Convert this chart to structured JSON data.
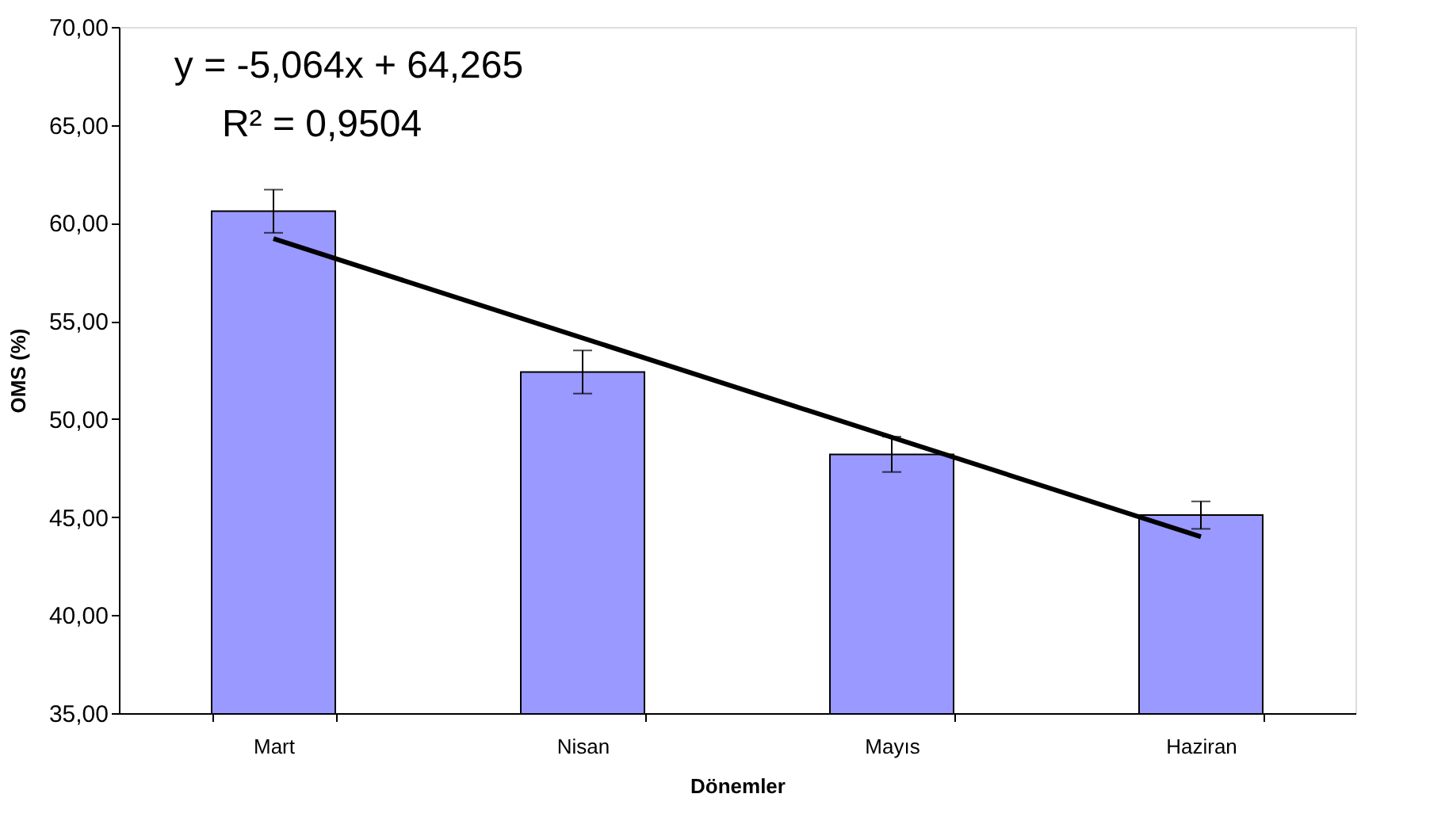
{
  "chart_data": {
    "type": "bar",
    "xlabel": "Dönemler",
    "ylabel": "OMS (%)",
    "categories": [
      "Mart",
      "Nisan",
      "Mayıs",
      "Haziran"
    ],
    "series": [
      {
        "color": "#9999ff",
        "values": [
          60.6,
          52.4,
          48.2,
          45.1
        ],
        "errors": [
          1.1,
          1.1,
          0.9,
          0.7
        ]
      },
      {
        "type": "line",
        "color": "#000000",
        "x": [
          "Mart",
          "Haziran"
        ],
        "values": [
          59.2,
          44.0
        ]
      }
    ],
    "ylim": [
      35,
      70
    ],
    "yticks": [
      {
        "value": 35,
        "label": "35,00"
      },
      {
        "value": 40,
        "label": "40,00"
      },
      {
        "value": 45,
        "label": "45,00"
      },
      {
        "value": 50,
        "label": "50,00"
      },
      {
        "value": 55,
        "label": "55,00"
      },
      {
        "value": 60,
        "label": "60,00"
      },
      {
        "value": 65,
        "label": "65,00"
      },
      {
        "value": 70,
        "label": "70,00"
      }
    ],
    "annotations": [
      "y = -5,064x + 64,265",
      "R² = 0,9504"
    ]
  }
}
